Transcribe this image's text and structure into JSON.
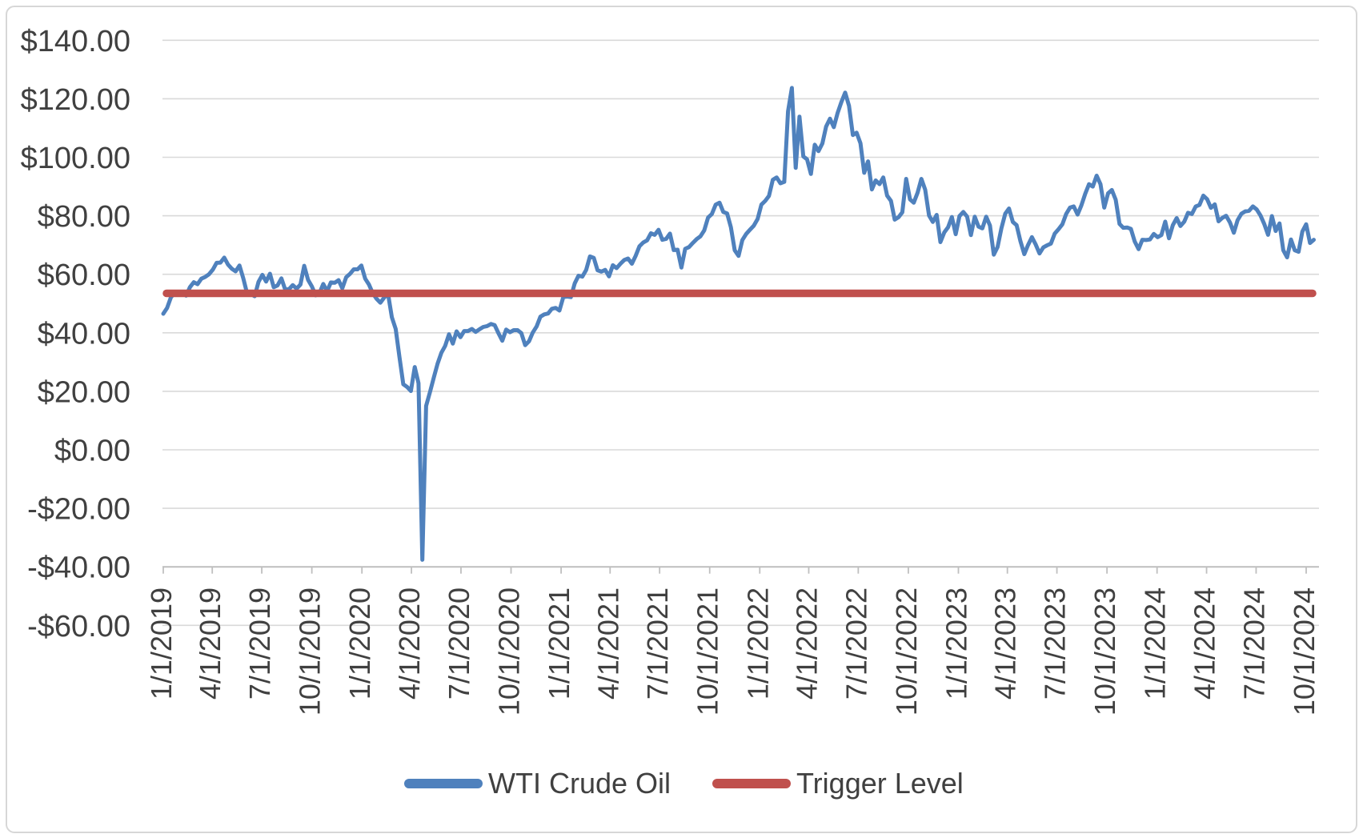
{
  "chart_data": {
    "type": "line",
    "title": "",
    "ylim": [
      -60,
      140
    ],
    "y_step": 20,
    "grid": true,
    "legend_position": "bottom",
    "y_tick_labels": [
      "$140.00",
      "$120.00",
      "$100.00",
      "$80.00",
      "$60.00",
      "$40.00",
      "$20.00",
      "$0.00",
      "-$20.00",
      "-$40.00",
      "-$60.00"
    ],
    "x_tick_labels": [
      "1/1/2019",
      "4/1/2019",
      "7/1/2019",
      "10/1/2019",
      "1/1/2020",
      "4/1/2020",
      "7/1/2020",
      "10/1/2020",
      "1/1/2021",
      "4/1/2021",
      "7/1/2021",
      "10/1/2021",
      "1/1/2022",
      "4/1/2022",
      "7/1/2022",
      "10/1/2022",
      "1/1/2023",
      "4/1/2023",
      "7/1/2023",
      "10/1/2023",
      "1/1/2024",
      "4/1/2024",
      "7/1/2024",
      "10/1/2024"
    ],
    "x_start_date": "1/1/2019",
    "interval_days": 7,
    "style": {
      "blue": "#4F81BD",
      "red": "#C0504D",
      "grid": "#D9D9D9",
      "axis": "#BFBFBF",
      "text": "#404040",
      "border": "#D7D7D7"
    },
    "series": [
      {
        "name": "WTI Crude Oil",
        "color": "#4F81BD",
        "values": [
          46.5,
          48.5,
          52.1,
          53.7,
          53.8,
          53.7,
          52.7,
          55.6,
          57.3,
          56.6,
          58.5,
          59.1,
          60.0,
          61.6,
          63.9,
          64.0,
          65.7,
          63.3,
          61.9,
          61.0,
          63.0,
          58.6,
          53.5,
          53.3,
          52.5,
          57.4,
          59.8,
          57.5,
          60.2,
          55.6,
          56.2,
          58.6,
          54.8,
          54.9,
          56.3,
          55.1,
          56.5,
          62.9,
          58.1,
          55.9,
          52.8,
          53.6,
          56.7,
          54.2,
          57.2,
          57.1,
          58.0,
          55.2,
          59.0,
          60.1,
          61.7,
          61.7,
          63.0,
          58.5,
          56.5,
          53.5,
          51.6,
          50.3,
          52.1,
          53.4,
          45.3,
          41.3,
          31.7,
          22.4,
          21.5,
          20.1,
          28.3,
          22.8,
          -37.6,
          15.0,
          19.7,
          24.7,
          29.4,
          33.2,
          35.5,
          39.5,
          36.3,
          40.5,
          38.5,
          40.6,
          40.6,
          41.3,
          40.3,
          41.2,
          42.0,
          42.3,
          43.0,
          42.6,
          39.8,
          37.3,
          41.1,
          40.2,
          40.9,
          40.9,
          39.9,
          35.8,
          37.1,
          40.1,
          42.2,
          45.5,
          46.3,
          46.6,
          48.2,
          48.5,
          47.6,
          52.2,
          52.4,
          52.2,
          56.9,
          59.5,
          59.2,
          61.5,
          66.1,
          65.6,
          61.4,
          60.9,
          61.5,
          59.3,
          63.1,
          62.1,
          63.6,
          64.9,
          65.4,
          63.6,
          66.3,
          69.6,
          70.9,
          71.6,
          74.0,
          73.5,
          75.2,
          71.8,
          72.1,
          73.9,
          68.3,
          68.4,
          62.3,
          68.7,
          69.3,
          70.7,
          72.0,
          73.0,
          75.0,
          79.4,
          80.6,
          83.8,
          84.5,
          81.3,
          80.8,
          76.1,
          68.2,
          66.3,
          71.7,
          73.8,
          75.2,
          76.6,
          78.9,
          83.8,
          85.1,
          86.8,
          92.3,
          93.1,
          91.1,
          91.6,
          115.7,
          123.7,
          96.4,
          113.9,
          100.3,
          99.3,
          94.3,
          104.3,
          102.1,
          104.7,
          110.5,
          113.2,
          110.3,
          115.1,
          118.9,
          122.1,
          117.6,
          107.6,
          108.4,
          104.8,
          94.7,
          98.6,
          89.0,
          92.1,
          90.8,
          93.1,
          86.9,
          85.1,
          78.7,
          79.5,
          81.2,
          92.6,
          85.6,
          84.5,
          87.9,
          92.6,
          88.9,
          80.1,
          77.9,
          80.3,
          71.0,
          74.3,
          76.1,
          79.6,
          73.7,
          79.9,
          81.3,
          79.7,
          73.4,
          79.7,
          76.3,
          75.7,
          79.7,
          76.7,
          66.7,
          69.3,
          75.7,
          80.7,
          82.5,
          77.9,
          76.8,
          71.3,
          66.9,
          70.0,
          72.7,
          70.2,
          67.1,
          69.2,
          69.9,
          70.5,
          73.9,
          75.4,
          77.1,
          80.6,
          82.8,
          83.2,
          80.4,
          83.6,
          87.5,
          90.8,
          90.0,
          93.7,
          90.8,
          82.8,
          87.7,
          88.8,
          85.5,
          77.2,
          75.9,
          76.0,
          75.5,
          71.2,
          68.6,
          71.8,
          71.7,
          71.9,
          73.8,
          72.7,
          73.4,
          78.0,
          72.3,
          76.8,
          79.2,
          76.5,
          78.0,
          81.0,
          80.6,
          83.2,
          83.7,
          86.9,
          85.7,
          82.7,
          83.9,
          78.1,
          79.3,
          80.0,
          77.7,
          74.2,
          78.5,
          80.7,
          81.5,
          81.7,
          83.2,
          82.2,
          80.1,
          77.2,
          73.5,
          79.9,
          74.8,
          77.4,
          68.2,
          65.8,
          71.9,
          68.2,
          67.7,
          74.6,
          77.1,
          70.7,
          71.8
        ]
      },
      {
        "name": "Trigger Level",
        "color": "#C0504D",
        "constant_value": 53.5
      }
    ]
  }
}
